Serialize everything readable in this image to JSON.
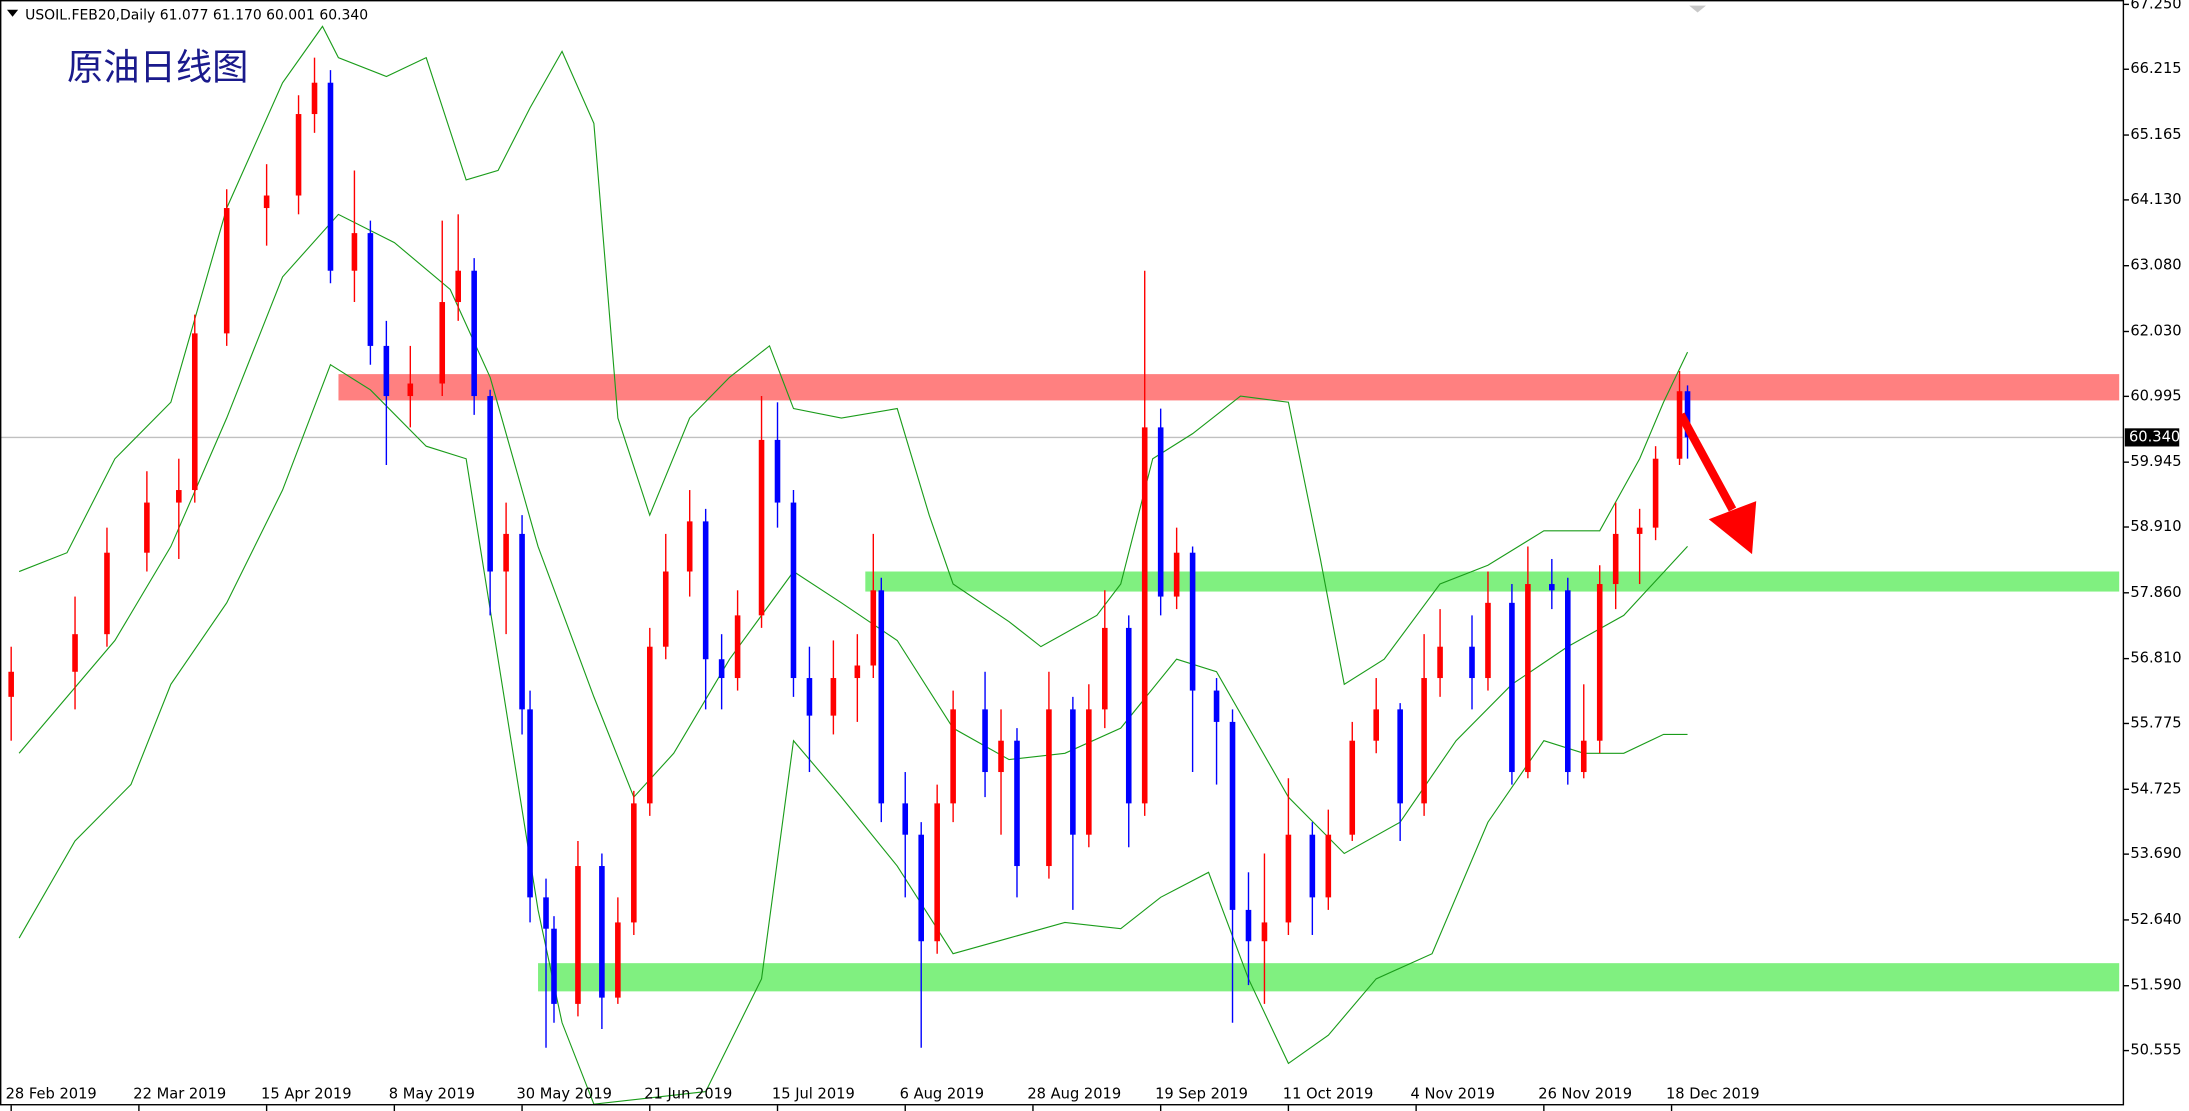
{
  "chart_data": {
    "type": "candlestick",
    "title": "原油日线图",
    "symbol_info": "USOIL.FEB20,Daily  61.077 61.170 60.001 60.340",
    "up_color": "#ff0000",
    "down_color": "#0000ff",
    "band_color": "#1a9c1a",
    "xlim": [
      -1.4,
      264.6
    ],
    "ylim": [
      49.68,
      67.32
    ],
    "yticks": [
      {
        "value": 67.25,
        "label": "67.250"
      },
      {
        "value": 66.215,
        "label": "66.215"
      },
      {
        "value": 65.165,
        "label": "65.165"
      },
      {
        "value": 64.13,
        "label": "64.130"
      },
      {
        "value": 63.08,
        "label": "63.080"
      },
      {
        "value": 62.03,
        "label": "62.030"
      },
      {
        "value": 60.995,
        "label": "60.995"
      },
      {
        "value": 59.945,
        "label": "59.945"
      },
      {
        "value": 58.91,
        "label": "58.910"
      },
      {
        "value": 57.86,
        "label": "57.860"
      },
      {
        "value": 56.81,
        "label": "56.810"
      },
      {
        "value": 55.775,
        "label": "55.775"
      },
      {
        "value": 54.725,
        "label": "54.725"
      },
      {
        "value": 53.69,
        "label": "53.690"
      },
      {
        "value": 52.64,
        "label": "52.640"
      },
      {
        "value": 51.59,
        "label": "51.590"
      },
      {
        "value": 50.555,
        "label": "50.555"
      }
    ],
    "xticks": [
      {
        "value": 0,
        "label": "28 Feb 2019"
      },
      {
        "value": 16,
        "label": "22 Mar 2019"
      },
      {
        "value": 32,
        "label": "15 Apr 2019"
      },
      {
        "value": 48,
        "label": "8 May 2019"
      },
      {
        "value": 64,
        "label": "30 May 2019"
      },
      {
        "value": 80,
        "label": "21 Jun 2019"
      },
      {
        "value": 96,
        "label": "15 Jul 2019"
      },
      {
        "value": 112,
        "label": "6 Aug 2019"
      },
      {
        "value": 128,
        "label": "28 Aug 2019"
      },
      {
        "value": 144,
        "label": "19 Sep 2019"
      },
      {
        "value": 160,
        "label": "11 Oct 2019"
      },
      {
        "value": 176,
        "label": "4 Nov 2019"
      },
      {
        "value": 192,
        "label": "26 Nov 2019"
      },
      {
        "value": 208,
        "label": "18 Dec 2019"
      }
    ],
    "current_price": {
      "value": 60.34,
      "label": "60.340"
    },
    "zones": [
      {
        "color": "#ff8080",
        "x_start": 41,
        "range": [
          60.93,
          61.35
        ]
      },
      {
        "color": "#80f080",
        "x_start": 107,
        "range": [
          57.88,
          58.2
        ]
      },
      {
        "color": "#80f080",
        "x_start": 66,
        "range": [
          51.5,
          51.95
        ]
      }
    ],
    "candles": [
      {
        "x": 0,
        "o": 56.2,
        "h": 57.0,
        "l": 55.5,
        "c": 56.6
      },
      {
        "x": 8,
        "o": 56.6,
        "h": 57.8,
        "l": 56.0,
        "c": 57.2
      },
      {
        "x": 12,
        "o": 57.2,
        "h": 58.9,
        "l": 57.0,
        "c": 58.5
      },
      {
        "x": 17,
        "o": 58.5,
        "h": 59.8,
        "l": 58.2,
        "c": 59.3
      },
      {
        "x": 21,
        "o": 59.3,
        "h": 60.0,
        "l": 58.4,
        "c": 59.5
      },
      {
        "x": 23,
        "o": 59.5,
        "h": 62.3,
        "l": 59.3,
        "c": 62.0
      },
      {
        "x": 27,
        "o": 62.0,
        "h": 64.3,
        "l": 61.8,
        "c": 64.0
      },
      {
        "x": 32,
        "o": 64.0,
        "h": 64.7,
        "l": 63.4,
        "c": 64.2
      },
      {
        "x": 36,
        "o": 64.2,
        "h": 65.8,
        "l": 63.9,
        "c": 65.5
      },
      {
        "x": 38,
        "o": 65.5,
        "h": 66.4,
        "l": 65.2,
        "c": 66.0
      },
      {
        "x": 40,
        "o": 66.0,
        "h": 66.2,
        "l": 62.8,
        "c": 63.0
      },
      {
        "x": 43,
        "o": 63.0,
        "h": 64.6,
        "l": 62.5,
        "c": 63.6
      },
      {
        "x": 45,
        "o": 63.6,
        "h": 63.8,
        "l": 61.5,
        "c": 61.8
      },
      {
        "x": 47,
        "o": 61.8,
        "h": 62.2,
        "l": 59.9,
        "c": 61.0
      },
      {
        "x": 50,
        "o": 61.0,
        "h": 61.8,
        "l": 60.5,
        "c": 61.2
      },
      {
        "x": 54,
        "o": 61.2,
        "h": 63.8,
        "l": 61.0,
        "c": 62.5
      },
      {
        "x": 56,
        "o": 62.5,
        "h": 63.9,
        "l": 62.2,
        "c": 63.0
      },
      {
        "x": 58,
        "o": 63.0,
        "h": 63.2,
        "l": 60.7,
        "c": 61.0
      },
      {
        "x": 60,
        "o": 61.0,
        "h": 61.1,
        "l": 57.5,
        "c": 58.2
      },
      {
        "x": 62,
        "o": 58.2,
        "h": 59.3,
        "l": 57.2,
        "c": 58.8
      },
      {
        "x": 64,
        "o": 58.8,
        "h": 59.1,
        "l": 55.6,
        "c": 56.0
      },
      {
        "x": 65,
        "o": 56.0,
        "h": 56.3,
        "l": 52.6,
        "c": 53.0
      },
      {
        "x": 67,
        "o": 53.0,
        "h": 53.3,
        "l": 50.6,
        "c": 52.5
      },
      {
        "x": 68,
        "o": 52.5,
        "h": 52.7,
        "l": 51.0,
        "c": 51.3
      },
      {
        "x": 71,
        "o": 51.3,
        "h": 53.9,
        "l": 51.1,
        "c": 53.5
      },
      {
        "x": 74,
        "o": 53.5,
        "h": 53.7,
        "l": 50.9,
        "c": 51.4
      },
      {
        "x": 76,
        "o": 51.4,
        "h": 53.0,
        "l": 51.3,
        "c": 52.6
      },
      {
        "x": 78,
        "o": 52.6,
        "h": 54.7,
        "l": 52.4,
        "c": 54.5
      },
      {
        "x": 80,
        "o": 54.5,
        "h": 57.3,
        "l": 54.3,
        "c": 57.0
      },
      {
        "x": 82,
        "o": 57.0,
        "h": 58.8,
        "l": 56.8,
        "c": 58.2
      },
      {
        "x": 85,
        "o": 58.2,
        "h": 59.5,
        "l": 57.8,
        "c": 59.0
      },
      {
        "x": 87,
        "o": 59.0,
        "h": 59.2,
        "l": 56.0,
        "c": 56.8
      },
      {
        "x": 89,
        "o": 56.8,
        "h": 57.2,
        "l": 56.0,
        "c": 56.5
      },
      {
        "x": 91,
        "o": 56.5,
        "h": 57.9,
        "l": 56.3,
        "c": 57.5
      },
      {
        "x": 94,
        "o": 57.5,
        "h": 61.0,
        "l": 57.3,
        "c": 60.3
      },
      {
        "x": 96,
        "o": 60.3,
        "h": 60.9,
        "l": 58.9,
        "c": 59.3
      },
      {
        "x": 98,
        "o": 59.3,
        "h": 59.5,
        "l": 56.2,
        "c": 56.5
      },
      {
        "x": 100,
        "o": 56.5,
        "h": 57.0,
        "l": 55.0,
        "c": 55.9
      },
      {
        "x": 103,
        "o": 55.9,
        "h": 57.1,
        "l": 55.6,
        "c": 56.5
      },
      {
        "x": 106,
        "o": 56.5,
        "h": 57.2,
        "l": 55.8,
        "c": 56.7
      },
      {
        "x": 108,
        "o": 56.7,
        "h": 58.8,
        "l": 56.5,
        "c": 57.9
      },
      {
        "x": 109,
        "o": 57.9,
        "h": 58.1,
        "l": 54.2,
        "c": 54.5
      },
      {
        "x": 112,
        "o": 54.5,
        "h": 55.0,
        "l": 53.0,
        "c": 54.0
      },
      {
        "x": 114,
        "o": 54.0,
        "h": 54.2,
        "l": 50.6,
        "c": 52.3
      },
      {
        "x": 116,
        "o": 52.3,
        "h": 54.8,
        "l": 52.1,
        "c": 54.5
      },
      {
        "x": 118,
        "o": 54.5,
        "h": 56.3,
        "l": 54.2,
        "c": 56.0
      },
      {
        "x": 122,
        "o": 56.0,
        "h": 56.6,
        "l": 54.6,
        "c": 55.0
      },
      {
        "x": 124,
        "o": 55.0,
        "h": 56.0,
        "l": 54.0,
        "c": 55.5
      },
      {
        "x": 126,
        "o": 55.5,
        "h": 55.7,
        "l": 53.0,
        "c": 53.5
      },
      {
        "x": 130,
        "o": 53.5,
        "h": 56.6,
        "l": 53.3,
        "c": 56.0
      },
      {
        "x": 133,
        "o": 56.0,
        "h": 56.2,
        "l": 52.8,
        "c": 54.0
      },
      {
        "x": 135,
        "o": 54.0,
        "h": 56.4,
        "l": 53.8,
        "c": 56.0
      },
      {
        "x": 137,
        "o": 56.0,
        "h": 57.9,
        "l": 55.7,
        "c": 57.3
      },
      {
        "x": 140,
        "o": 57.3,
        "h": 57.5,
        "l": 53.8,
        "c": 54.5
      },
      {
        "x": 142,
        "o": 54.5,
        "h": 63.0,
        "l": 54.3,
        "c": 60.5
      },
      {
        "x": 144,
        "o": 60.5,
        "h": 60.8,
        "l": 57.5,
        "c": 57.8
      },
      {
        "x": 146,
        "o": 57.8,
        "h": 58.9,
        "l": 57.6,
        "c": 58.5
      },
      {
        "x": 148,
        "o": 58.5,
        "h": 58.6,
        "l": 55.0,
        "c": 56.3
      },
      {
        "x": 151,
        "o": 56.3,
        "h": 56.5,
        "l": 54.8,
        "c": 55.8
      },
      {
        "x": 153,
        "o": 55.8,
        "h": 56.0,
        "l": 51.0,
        "c": 52.8
      },
      {
        "x": 155,
        "o": 52.8,
        "h": 53.4,
        "l": 51.6,
        "c": 52.3
      },
      {
        "x": 157,
        "o": 52.3,
        "h": 53.7,
        "l": 51.3,
        "c": 52.6
      },
      {
        "x": 160,
        "o": 52.6,
        "h": 54.9,
        "l": 52.4,
        "c": 54.0
      },
      {
        "x": 163,
        "o": 54.0,
        "h": 54.2,
        "l": 52.4,
        "c": 53.0
      },
      {
        "x": 165,
        "o": 53.0,
        "h": 54.4,
        "l": 52.8,
        "c": 54.0
      },
      {
        "x": 168,
        "o": 54.0,
        "h": 55.8,
        "l": 53.9,
        "c": 55.5
      },
      {
        "x": 171,
        "o": 55.5,
        "h": 56.5,
        "l": 55.3,
        "c": 56.0
      },
      {
        "x": 174,
        "o": 56.0,
        "h": 56.1,
        "l": 53.9,
        "c": 54.5
      },
      {
        "x": 177,
        "o": 54.5,
        "h": 57.2,
        "l": 54.3,
        "c": 56.5
      },
      {
        "x": 179,
        "o": 56.5,
        "h": 57.6,
        "l": 56.2,
        "c": 57.0
      },
      {
        "x": 183,
        "o": 57.0,
        "h": 57.5,
        "l": 56.0,
        "c": 56.5
      },
      {
        "x": 185,
        "o": 56.5,
        "h": 58.2,
        "l": 56.3,
        "c": 57.7
      },
      {
        "x": 188,
        "o": 57.7,
        "h": 58.0,
        "l": 54.8,
        "c": 55.0
      },
      {
        "x": 190,
        "o": 55.0,
        "h": 58.6,
        "l": 54.9,
        "c": 58.0
      },
      {
        "x": 193,
        "o": 58.0,
        "h": 58.4,
        "l": 57.6,
        "c": 57.9
      },
      {
        "x": 195,
        "o": 57.9,
        "h": 58.1,
        "l": 54.8,
        "c": 55.0
      },
      {
        "x": 197,
        "o": 55.0,
        "h": 56.4,
        "l": 54.9,
        "c": 55.5
      },
      {
        "x": 199,
        "o": 55.5,
        "h": 58.3,
        "l": 55.3,
        "c": 58.0
      },
      {
        "x": 201,
        "o": 58.0,
        "h": 59.3,
        "l": 57.6,
        "c": 58.8
      },
      {
        "x": 204,
        "o": 58.8,
        "h": 59.2,
        "l": 58.0,
        "c": 58.9
      },
      {
        "x": 206,
        "o": 58.9,
        "h": 60.2,
        "l": 58.7,
        "c": 60.0
      },
      {
        "x": 209,
        "o": 60.0,
        "h": 61.4,
        "l": 59.9,
        "c": 61.077
      },
      {
        "x": 210,
        "o": 61.077,
        "h": 61.17,
        "l": 60.001,
        "c": 60.34
      }
    ],
    "bands": [
      {
        "x": [
          1,
          7,
          13,
          20,
          27,
          34,
          39,
          41,
          47,
          52,
          57,
          61,
          65,
          69,
          73,
          76,
          80,
          85,
          90,
          95,
          98,
          104,
          111,
          115,
          118,
          125,
          129,
          136,
          139,
          143,
          148,
          154,
          160,
          164,
          167,
          172,
          179,
          185,
          192,
          199,
          204,
          207,
          210
        ],
        "values": [
          58.2,
          58.5,
          60.0,
          60.9,
          64.0,
          66.0,
          66.9,
          66.4,
          66.1,
          66.4,
          64.45,
          64.6,
          65.6,
          66.5,
          65.35,
          60.65,
          59.1,
          60.65,
          61.3,
          61.8,
          60.8,
          60.65,
          60.8,
          59.1,
          58.0,
          57.4,
          57.0,
          57.5,
          58.0,
          60.0,
          60.4,
          61.0,
          60.9,
          58.4,
          56.4,
          56.8,
          58.0,
          58.3,
          58.85,
          58.85,
          60.0,
          60.9,
          61.7
        ]
      },
      {
        "x": [
          1,
          13,
          20,
          27,
          34,
          41,
          48,
          55,
          60,
          66,
          73,
          78,
          83,
          90,
          98,
          104,
          111,
          118,
          125,
          132,
          139,
          146,
          151,
          160,
          167,
          174,
          181,
          188,
          195,
          202,
          210
        ],
        "values": [
          55.3,
          57.1,
          58.6,
          60.65,
          62.9,
          63.9,
          63.45,
          62.7,
          61.3,
          58.6,
          56.2,
          54.6,
          55.3,
          56.8,
          58.2,
          57.7,
          57.1,
          55.7,
          55.2,
          55.3,
          55.7,
          56.8,
          56.6,
          54.6,
          53.7,
          54.2,
          55.5,
          56.4,
          57.0,
          57.5,
          58.6
        ]
      },
      {
        "x": [
          1,
          8,
          15,
          20,
          27,
          34,
          40,
          45,
          52,
          57,
          66,
          69,
          73,
          87,
          94,
          98,
          104,
          111,
          118,
          125,
          132,
          139,
          144,
          150,
          155,
          160,
          165,
          171,
          178,
          185,
          192,
          197,
          202,
          207,
          210
        ],
        "values": [
          52.35,
          53.9,
          54.8,
          56.4,
          57.7,
          59.5,
          61.5,
          61.1,
          60.2,
          60.0,
          52.8,
          51.0,
          49.7,
          49.9,
          51.7,
          55.5,
          54.6,
          53.5,
          52.1,
          52.35,
          52.6,
          52.5,
          53.0,
          53.4,
          51.7,
          50.35,
          50.8,
          51.7,
          52.1,
          54.2,
          55.5,
          55.3,
          55.3,
          55.6,
          55.6
        ]
      }
    ]
  }
}
